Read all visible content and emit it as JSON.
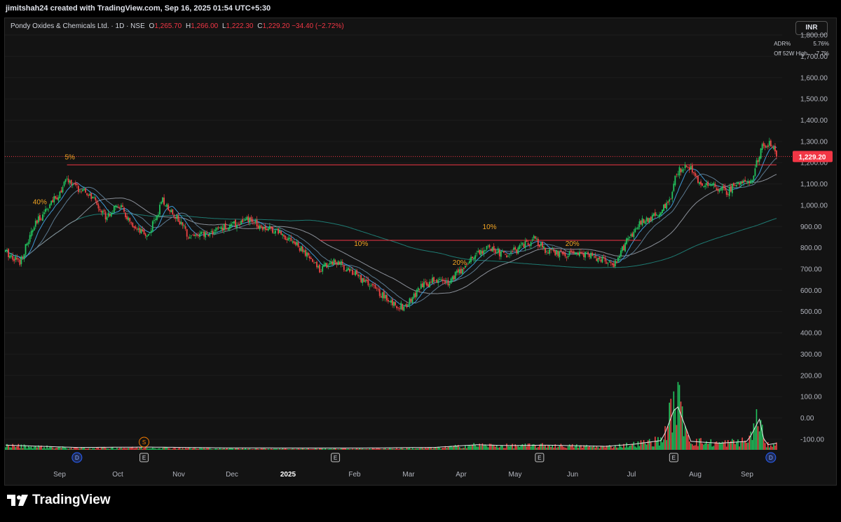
{
  "header": {
    "creator": "jimitshah24 created with TradingView.com, Sep 16, 2025 01:54 UTC+5:30"
  },
  "legend": {
    "symbol": "Pondy Oxides & Chemicals Ltd. · 1D · NSE",
    "o_label": "O",
    "o": "1,265.70",
    "h_label": "H",
    "h": "1,266.00",
    "l_label": "L",
    "l": "1,222.30",
    "c_label": "C",
    "c": "1,229.20",
    "change": "−34.40 (−2.72%)"
  },
  "currency": "INR",
  "metrics": [
    {
      "label": "ADR%",
      "value": "5.76%"
    },
    {
      "label": "Off 52W High",
      "value": "-7.7%"
    }
  ],
  "footer": {
    "brand": "TradingView"
  },
  "colors": {
    "up": "#22c55e",
    "down": "#ef4444",
    "background": "#131313",
    "level": "#f23645",
    "price_tag": "#f23645"
  },
  "chart_data": {
    "type": "candlestick",
    "ylim": [
      -150,
      1870
    ],
    "y_ticks": [
      "1,800.00",
      "1,700.00",
      "1,600.00",
      "1,500.00",
      "1,400.00",
      "1,300.00",
      "1,200.00",
      "1,100.00",
      "1,000.00",
      "900.00",
      "800.00",
      "700.00",
      "600.00",
      "500.00",
      "400.00",
      "300.00",
      "200.00",
      "100.00",
      "0.00",
      "-100.00"
    ],
    "y_tick_values": [
      1800,
      1700,
      1600,
      1500,
      1400,
      1300,
      1200,
      1100,
      1000,
      900,
      800,
      700,
      600,
      500,
      400,
      300,
      200,
      100,
      0,
      -100
    ],
    "x_ticks": [
      "Sep",
      "Oct",
      "Nov",
      "Dec",
      "2025",
      "Feb",
      "Mar",
      "Apr",
      "May",
      "Jun",
      "Jul",
      "Aug",
      "Sep"
    ],
    "last_price": "1,229.20",
    "last_price_value": 1229.2,
    "close_anchors": [
      [
        0,
        780
      ],
      [
        10,
        735
      ],
      [
        20,
        900
      ],
      [
        28,
        980
      ],
      [
        36,
        1040
      ],
      [
        43,
        1120
      ],
      [
        52,
        1070
      ],
      [
        60,
        1040
      ],
      [
        70,
        950
      ],
      [
        80,
        1000
      ],
      [
        90,
        880
      ],
      [
        100,
        860
      ],
      [
        110,
        1020
      ],
      [
        118,
        960
      ],
      [
        128,
        860
      ],
      [
        140,
        860
      ],
      [
        150,
        890
      ],
      [
        160,
        910
      ],
      [
        170,
        930
      ],
      [
        180,
        900
      ],
      [
        190,
        880
      ],
      [
        200,
        840
      ],
      [
        210,
        770
      ],
      [
        220,
        700
      ],
      [
        230,
        740
      ],
      [
        240,
        700
      ],
      [
        250,
        650
      ],
      [
        260,
        600
      ],
      [
        270,
        540
      ],
      [
        280,
        520
      ],
      [
        290,
        610
      ],
      [
        300,
        650
      ],
      [
        310,
        640
      ],
      [
        320,
        700
      ],
      [
        330,
        780
      ],
      [
        340,
        800
      ],
      [
        350,
        760
      ],
      [
        360,
        800
      ],
      [
        370,
        840
      ],
      [
        380,
        780
      ],
      [
        390,
        770
      ],
      [
        400,
        770
      ],
      [
        410,
        760
      ],
      [
        420,
        740
      ],
      [
        425,
        710
      ],
      [
        435,
        830
      ],
      [
        445,
        920
      ],
      [
        455,
        950
      ],
      [
        465,
        1010
      ],
      [
        470,
        1160
      ],
      [
        478,
        1190
      ],
      [
        488,
        1080
      ],
      [
        495,
        1100
      ],
      [
        505,
        1060
      ],
      [
        515,
        1120
      ],
      [
        522,
        1110
      ],
      [
        530,
        1280
      ],
      [
        536,
        1290
      ],
      [
        540,
        1229
      ]
    ],
    "volume_anchors": [
      [
        0,
        20
      ],
      [
        50,
        8
      ],
      [
        100,
        10
      ],
      [
        150,
        6
      ],
      [
        200,
        5
      ],
      [
        250,
        5
      ],
      [
        300,
        8
      ],
      [
        330,
        22
      ],
      [
        350,
        18
      ],
      [
        380,
        20
      ],
      [
        420,
        14
      ],
      [
        440,
        25
      ],
      [
        460,
        45
      ],
      [
        470,
        240
      ],
      [
        480,
        40
      ],
      [
        500,
        30
      ],
      [
        520,
        40
      ],
      [
        528,
        155
      ],
      [
        532,
        20
      ],
      [
        540,
        30
      ]
    ],
    "level_lines": [
      {
        "price": 1190,
        "from_index": 43,
        "to_index": 540
      },
      {
        "price": 835,
        "from_index": 220,
        "to_index": 445
      }
    ],
    "annotations": [
      {
        "text": "40%",
        "index": 24,
        "price": 1005
      },
      {
        "text": "5%",
        "index": 45,
        "price": 1215
      },
      {
        "text": "10%",
        "index": 249,
        "price": 808
      },
      {
        "text": "20%",
        "index": 318,
        "price": 720
      },
      {
        "text": "10%",
        "index": 339,
        "price": 888
      },
      {
        "text": "20%",
        "index": 397,
        "price": 808
      }
    ],
    "event_markers": [
      {
        "text": "D",
        "index": 50,
        "kind": "dividend"
      },
      {
        "text": "E",
        "index": 97,
        "kind": "earnings"
      },
      {
        "text": "S",
        "index": 97,
        "kind": "split"
      },
      {
        "text": "E",
        "index": 231,
        "kind": "earnings"
      },
      {
        "text": "E",
        "index": 374,
        "kind": "earnings"
      },
      {
        "text": "E",
        "index": 468,
        "kind": "earnings"
      },
      {
        "text": "D",
        "index": 536,
        "kind": "dividend"
      }
    ]
  }
}
